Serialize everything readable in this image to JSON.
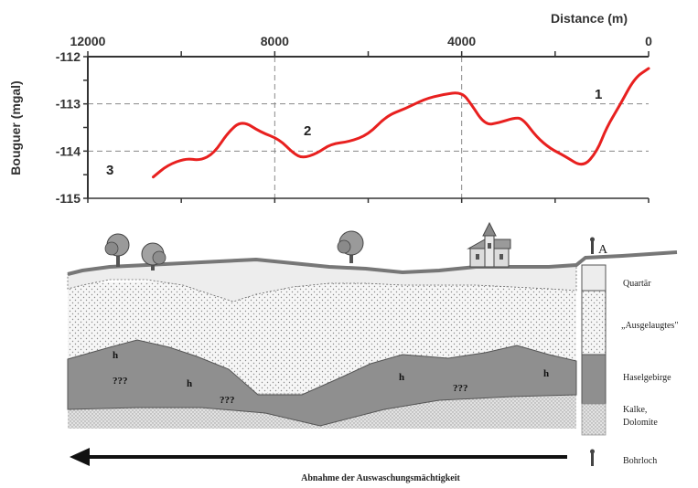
{
  "chart_data": {
    "type": "line",
    "title": "",
    "xlabel": "Distance (m)",
    "ylabel": "Bouguer (mgal)",
    "x_reversed": true,
    "xlim": [
      12000,
      0
    ],
    "ylim": [
      -115,
      -112
    ],
    "x_ticks": [
      "12000",
      "8000",
      "4000",
      "0"
    ],
    "y_ticks": [
      "-112",
      "-113",
      "-114",
      "-115"
    ],
    "grid": "dashed at x=8000, x=4000, y=-113, y=-114",
    "series": [
      {
        "color": "#e8201f",
        "x": [
          10600,
          10300,
          9900,
          9600,
          9300,
          9000,
          8700,
          8300,
          7900,
          7600,
          7400,
          7100,
          6800,
          6400,
          6000,
          5600,
          5200,
          4800,
          4400,
          4000,
          3800,
          3500,
          3200,
          2900,
          2700,
          2400,
          2100,
          1800,
          1400,
          1100,
          900,
          600,
          300,
          0
        ],
        "y": [
          -114.55,
          -114.3,
          -114.15,
          -114.2,
          -114.05,
          -113.6,
          -113.35,
          -113.6,
          -113.75,
          -114.05,
          -114.15,
          -114.05,
          -113.85,
          -113.8,
          -113.65,
          -113.25,
          -113.1,
          -112.9,
          -112.8,
          -112.75,
          -113.0,
          -113.45,
          -113.4,
          -113.3,
          -113.3,
          -113.7,
          -113.95,
          -114.1,
          -114.35,
          -114.0,
          -113.5,
          -113.0,
          -112.45,
          -112.25
        ]
      }
    ],
    "annotations": [
      "1",
      "2",
      "3"
    ]
  },
  "section": {
    "layers": {
      "quartar": "Quartär",
      "ausgelaugt": "„Ausgelaugtes\"",
      "haselgebirge": "Haselgebirge",
      "kalke": "Kalke,",
      "dolomite": "Dolomite"
    },
    "marks": {
      "h1": "h",
      "h2": "h",
      "h3": "h",
      "h4": "h",
      "h5": "h",
      "q1": "???",
      "q2": "???",
      "q3": "???"
    },
    "well_label": "A",
    "bohrloch": "Bohrloch",
    "arrow_caption": "Abnahme der Auswaschungsmächtigkeit"
  },
  "colors": {
    "curve": "#e8201f",
    "haselgebirge": "#8f8f8f",
    "quartar": "#ededed",
    "surface": "#777777"
  }
}
